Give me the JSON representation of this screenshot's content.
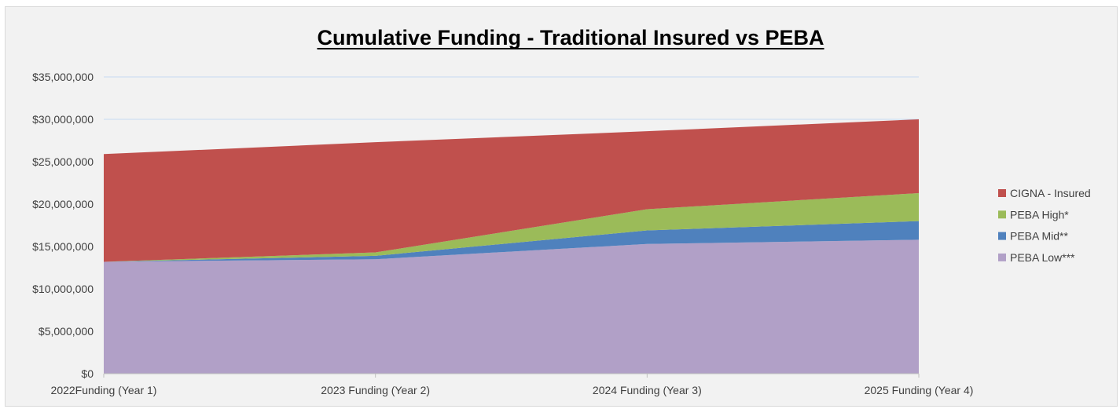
{
  "chart_data": {
    "type": "area",
    "stacked": true,
    "title": "Cumulative Funding - Traditional Insured vs PEBA",
    "title_underlined": true,
    "xlabel": "",
    "ylabel": "",
    "categories": [
      "2022Funding (Year 1)",
      "2023 Funding (Year 2)",
      "2024 Funding (Year 3)",
      "2025 Funding (Year 4)"
    ],
    "ylim": [
      0,
      35000000
    ],
    "yticks": [
      0,
      5000000,
      10000000,
      15000000,
      20000000,
      25000000,
      30000000,
      35000000
    ],
    "ytick_labels": [
      "$0",
      "$5,000,000",
      "$10,000,000",
      "$15,000,000",
      "$20,000,000",
      "$25,000,000",
      "$30,000,000",
      "$35,000,000"
    ],
    "grid": true,
    "legend_position": "right",
    "series": [
      {
        "name": "PEBA Low***",
        "color": "#b1a0c7",
        "values": [
          13200000,
          13500000,
          15300000,
          15800000
        ]
      },
      {
        "name": "PEBA Mid**",
        "color": "#4f81bd",
        "values": [
          0,
          400000,
          1600000,
          2200000
        ]
      },
      {
        "name": "PEBA High*",
        "color": "#9bbb59",
        "values": [
          0,
          400000,
          2500000,
          3300000
        ]
      },
      {
        "name": "CIGNA - Insured",
        "color": "#c0504d",
        "values": [
          12700000,
          13000000,
          9200000,
          8700000
        ]
      }
    ],
    "legend_order": [
      "CIGNA - Insured",
      "PEBA High*",
      "PEBA Mid**",
      "PEBA Low***"
    ]
  }
}
